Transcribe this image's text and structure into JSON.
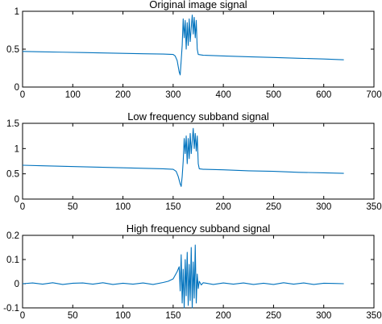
{
  "figure": {
    "background": "#ffffff",
    "line_color": "#0072BD"
  },
  "chart_data": [
    {
      "type": "line",
      "title": "Original image signal",
      "xlabel": "",
      "ylabel": "",
      "xlim": [
        0,
        700
      ],
      "ylim": [
        0,
        1
      ],
      "xticks": [
        0,
        100,
        200,
        300,
        400,
        500,
        600,
        700
      ],
      "yticks": [
        0,
        0.5,
        1
      ],
      "series": [
        {
          "x": [
            0,
            40,
            80,
            120,
            160,
            200,
            240,
            280,
            300,
            304,
            308,
            312,
            314,
            316,
            318,
            320,
            322,
            324,
            326,
            328,
            330,
            332,
            334,
            336,
            338,
            340,
            342,
            344,
            346,
            348,
            350,
            360,
            400,
            450,
            500,
            550,
            600,
            640
          ],
          "y": [
            0.47,
            0.465,
            0.46,
            0.455,
            0.45,
            0.445,
            0.44,
            0.435,
            0.43,
            0.41,
            0.35,
            0.2,
            0.16,
            0.35,
            0.55,
            0.9,
            0.65,
            0.88,
            0.5,
            0.85,
            0.55,
            0.9,
            0.6,
            0.78,
            0.95,
            0.7,
            0.92,
            0.65,
            0.88,
            0.5,
            0.43,
            0.42,
            0.41,
            0.4,
            0.39,
            0.38,
            0.37,
            0.36
          ]
        }
      ]
    },
    {
      "type": "line",
      "title": "Low frequency subband signal",
      "xlabel": "",
      "ylabel": "",
      "xlim": [
        0,
        350
      ],
      "ylim": [
        0,
        1.5
      ],
      "xticks": [
        0,
        50,
        100,
        150,
        200,
        250,
        300,
        350
      ],
      "yticks": [
        0,
        0.5,
        1,
        1.5
      ],
      "series": [
        {
          "x": [
            0,
            20,
            40,
            60,
            80,
            100,
            120,
            140,
            150,
            153,
            155,
            157,
            158,
            159,
            160,
            161,
            162,
            163,
            164,
            165,
            166,
            167,
            168,
            169,
            170,
            171,
            172,
            173,
            174,
            175,
            176,
            180,
            200,
            225,
            250,
            275,
            300,
            320
          ],
          "y": [
            0.67,
            0.66,
            0.65,
            0.64,
            0.63,
            0.62,
            0.61,
            0.6,
            0.59,
            0.55,
            0.45,
            0.3,
            0.25,
            0.45,
            0.75,
            1.2,
            0.9,
            1.25,
            0.7,
            1.2,
            0.8,
            1.3,
            0.9,
            1.15,
            1.4,
            1.0,
            1.3,
            0.95,
            1.25,
            0.7,
            0.6,
            0.59,
            0.58,
            0.56,
            0.55,
            0.53,
            0.52,
            0.51
          ]
        }
      ]
    },
    {
      "type": "line",
      "title": "High frequency subband signal",
      "xlabel": "",
      "ylabel": "",
      "xlim": [
        0,
        350
      ],
      "ylim": [
        -0.1,
        0.2
      ],
      "xticks": [
        0,
        50,
        100,
        150,
        200,
        250,
        300,
        350
      ],
      "yticks": [
        -0.1,
        0,
        0.1,
        0.2
      ],
      "series": [
        {
          "x": [
            0,
            10,
            20,
            30,
            40,
            50,
            60,
            70,
            80,
            90,
            100,
            110,
            120,
            130,
            140,
            145,
            150,
            152,
            154,
            156,
            157,
            158,
            159,
            160,
            161,
            162,
            163,
            164,
            165,
            166,
            167,
            168,
            169,
            170,
            171,
            172,
            173,
            174,
            175,
            176,
            178,
            180,
            190,
            200,
            210,
            220,
            230,
            240,
            250,
            260,
            270,
            280,
            290,
            300,
            310,
            320
          ],
          "y": [
            0.0,
            0.003,
            -0.002,
            0.004,
            -0.003,
            0.002,
            0.003,
            -0.002,
            0.004,
            -0.003,
            0.002,
            -0.002,
            0.003,
            -0.003,
            0.005,
            0.01,
            0.02,
            0.035,
            0.05,
            0.07,
            -0.03,
            0.12,
            -0.08,
            0.06,
            -0.1,
            0.1,
            -0.05,
            0.13,
            -0.09,
            0.08,
            -0.07,
            0.15,
            -0.1,
            0.09,
            -0.06,
            0.16,
            -0.08,
            0.04,
            -0.02,
            0.01,
            -0.005,
            0.004,
            -0.003,
            0.003,
            -0.002,
            0.003,
            -0.003,
            0.002,
            -0.003,
            0.004,
            -0.002,
            0.003,
            -0.003,
            0.002,
            0.001,
            0.0
          ]
        }
      ]
    }
  ]
}
